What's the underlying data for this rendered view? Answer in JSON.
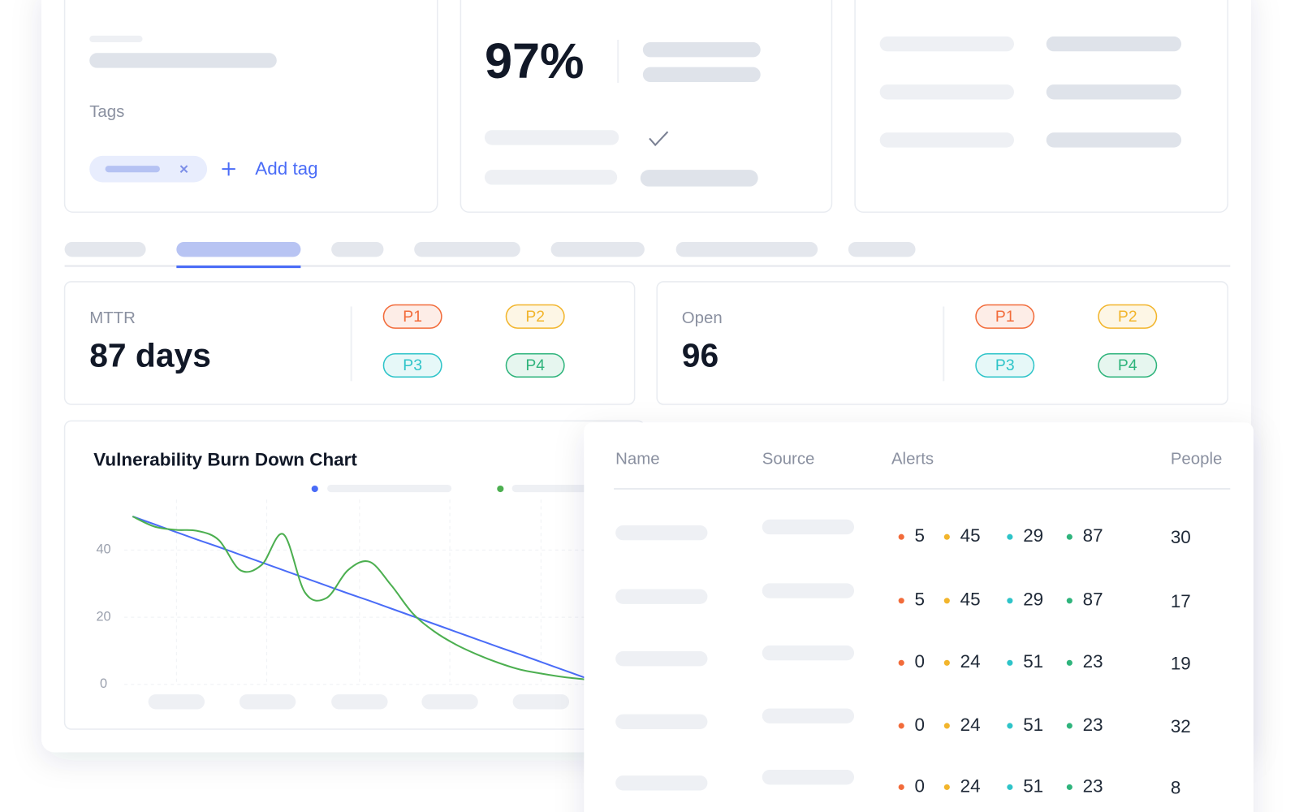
{
  "severity_colors": [
    "#f26b3a",
    "#f2b52c",
    "#2ec4c9",
    "#2fb47c"
  ],
  "details": {
    "tags_label": "Tags",
    "add_tag": "Add tag"
  },
  "security_score": {
    "value": "97%"
  },
  "mttr": {
    "label": "MTTR",
    "value": "87 days",
    "priorities": [
      "P1",
      "P2",
      "P3",
      "P4"
    ]
  },
  "open": {
    "label": "Open",
    "value": "96",
    "priorities": [
      "P1",
      "P2",
      "P3",
      "P4"
    ]
  },
  "chart": {
    "type": "line",
    "title": "Vulnerability Burn Down Chart",
    "categories": [
      null,
      null,
      null,
      null,
      null,
      null,
      null,
      null,
      null,
      null,
      null,
      null,
      null,
      null,
      null,
      null,
      null,
      null,
      null,
      null,
      null,
      null
    ],
    "ylim": [
      0,
      55
    ],
    "yticks": [
      0,
      20,
      40
    ],
    "grid": true,
    "series": [
      {
        "color": "#4a6cf7",
        "values": [
          50,
          47.7,
          45.4,
          43.1,
          40.9,
          38.6,
          36.3,
          34,
          31.7,
          29.4,
          27.1,
          24.9,
          22.6,
          20.3,
          18,
          15.7,
          13.4,
          11.1,
          8.9,
          6.6,
          4.3,
          2
        ]
      },
      {
        "color": "#4caf50",
        "values": [
          50,
          47,
          46,
          45.7,
          43,
          34,
          35.6,
          44.7,
          27.4,
          25.7,
          34,
          36.5,
          29.6,
          21.2,
          15.8,
          11.9,
          8.9,
          6.4,
          4.4,
          3.2,
          2.2,
          1.5
        ]
      }
    ]
  },
  "table": {
    "columns": [
      "Name",
      "Source",
      "Alerts",
      "People"
    ],
    "rows": [
      {
        "alerts": [
          5,
          45,
          29,
          87
        ],
        "people": 30
      },
      {
        "alerts": [
          5,
          45,
          29,
          87
        ],
        "people": 17
      },
      {
        "alerts": [
          0,
          24,
          51,
          23
        ],
        "people": 19
      },
      {
        "alerts": [
          0,
          24,
          51,
          23
        ],
        "people": 32
      },
      {
        "alerts": [
          0,
          24,
          51,
          23
        ],
        "people": 8
      }
    ]
  }
}
